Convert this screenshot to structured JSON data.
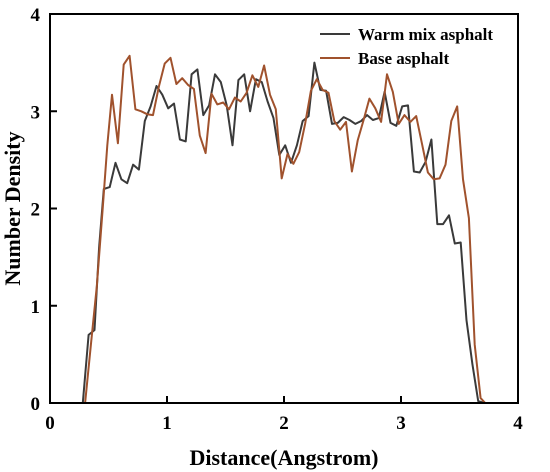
{
  "chart_data": {
    "type": "line",
    "title": "",
    "xlabel": "Distance(Angstrom)",
    "ylabel": "Number Density",
    "xlim": [
      0,
      4
    ],
    "ylim": [
      0,
      4
    ],
    "xticks": [
      "0",
      "1",
      "2",
      "3",
      "4"
    ],
    "yticks": [
      "0",
      "1",
      "2",
      "3",
      "4"
    ],
    "grid": false,
    "legend_position": "top-right",
    "series": [
      {
        "name": "Warm mix asphalt",
        "color": "#3a3a3a",
        "x": [
          0.28,
          0.33,
          0.38,
          0.42,
          0.46,
          0.51,
          0.56,
          0.61,
          0.66,
          0.71,
          0.76,
          0.81,
          0.86,
          0.91,
          0.96,
          1.01,
          1.06,
          1.11,
          1.16,
          1.21,
          1.26,
          1.31,
          1.36,
          1.41,
          1.46,
          1.51,
          1.56,
          1.61,
          1.66,
          1.71,
          1.76,
          1.81,
          1.86,
          1.91,
          1.96,
          2.01,
          2.06,
          2.11,
          2.16,
          2.21,
          2.26,
          2.31,
          2.36,
          2.41,
          2.46,
          2.51,
          2.56,
          2.61,
          2.66,
          2.71,
          2.76,
          2.81,
          2.86,
          2.91,
          2.96,
          3.01,
          3.06,
          3.11,
          3.16,
          3.21,
          3.26,
          3.31,
          3.36,
          3.41,
          3.46,
          3.51,
          3.56,
          3.61,
          3.66,
          3.71
        ],
        "y": [
          0.0,
          0.7,
          0.75,
          1.6,
          2.2,
          2.22,
          2.47,
          2.3,
          2.26,
          2.45,
          2.4,
          2.9,
          3.05,
          3.26,
          3.17,
          3.03,
          3.08,
          2.71,
          2.69,
          3.38,
          3.43,
          2.96,
          3.06,
          3.38,
          3.3,
          3.06,
          2.65,
          3.32,
          3.38,
          3.0,
          3.33,
          3.3,
          3.1,
          2.93,
          2.55,
          2.65,
          2.47,
          2.65,
          2.9,
          2.95,
          3.5,
          3.22,
          3.21,
          2.87,
          2.88,
          2.94,
          2.91,
          2.87,
          2.9,
          2.96,
          2.91,
          2.93,
          3.2,
          2.88,
          2.85,
          3.05,
          3.06,
          2.38,
          2.37,
          2.48,
          2.71,
          1.84,
          1.84,
          1.93,
          1.64,
          1.65,
          0.85,
          0.4,
          0.02,
          0.0
        ]
      },
      {
        "name": "Base asphalt",
        "color": "#a0522d",
        "x": [
          0.3,
          0.35,
          0.4,
          0.45,
          0.49,
          0.53,
          0.58,
          0.63,
          0.68,
          0.73,
          0.78,
          0.83,
          0.88,
          0.93,
          0.98,
          1.03,
          1.08,
          1.13,
          1.18,
          1.23,
          1.28,
          1.33,
          1.38,
          1.43,
          1.48,
          1.53,
          1.58,
          1.63,
          1.68,
          1.73,
          1.78,
          1.83,
          1.88,
          1.93,
          1.98,
          2.03,
          2.08,
          2.13,
          2.18,
          2.23,
          2.28,
          2.33,
          2.38,
          2.43,
          2.48,
          2.53,
          2.58,
          2.63,
          2.68,
          2.73,
          2.78,
          2.83,
          2.88,
          2.93,
          2.98,
          3.03,
          3.08,
          3.13,
          3.18,
          3.23,
          3.28,
          3.33,
          3.38,
          3.43,
          3.48,
          3.53,
          3.58,
          3.63,
          3.68,
          3.72
        ],
        "y": [
          0.0,
          0.6,
          1.2,
          2.0,
          2.65,
          3.17,
          2.67,
          3.48,
          3.57,
          3.02,
          3.0,
          2.97,
          2.96,
          3.25,
          3.49,
          3.55,
          3.28,
          3.34,
          3.27,
          3.23,
          2.75,
          2.57,
          3.18,
          3.07,
          3.09,
          3.02,
          3.14,
          3.1,
          3.19,
          3.37,
          3.25,
          3.47,
          3.17,
          3.02,
          2.31,
          2.56,
          2.46,
          2.58,
          2.87,
          3.21,
          3.33,
          3.22,
          3.19,
          2.9,
          2.81,
          2.89,
          2.38,
          2.7,
          2.91,
          3.13,
          3.03,
          2.89,
          3.38,
          3.2,
          2.87,
          2.96,
          2.89,
          2.95,
          2.66,
          2.37,
          2.3,
          2.31,
          2.45,
          2.9,
          3.05,
          2.3,
          1.9,
          0.6,
          0.05,
          0.0
        ]
      }
    ]
  }
}
